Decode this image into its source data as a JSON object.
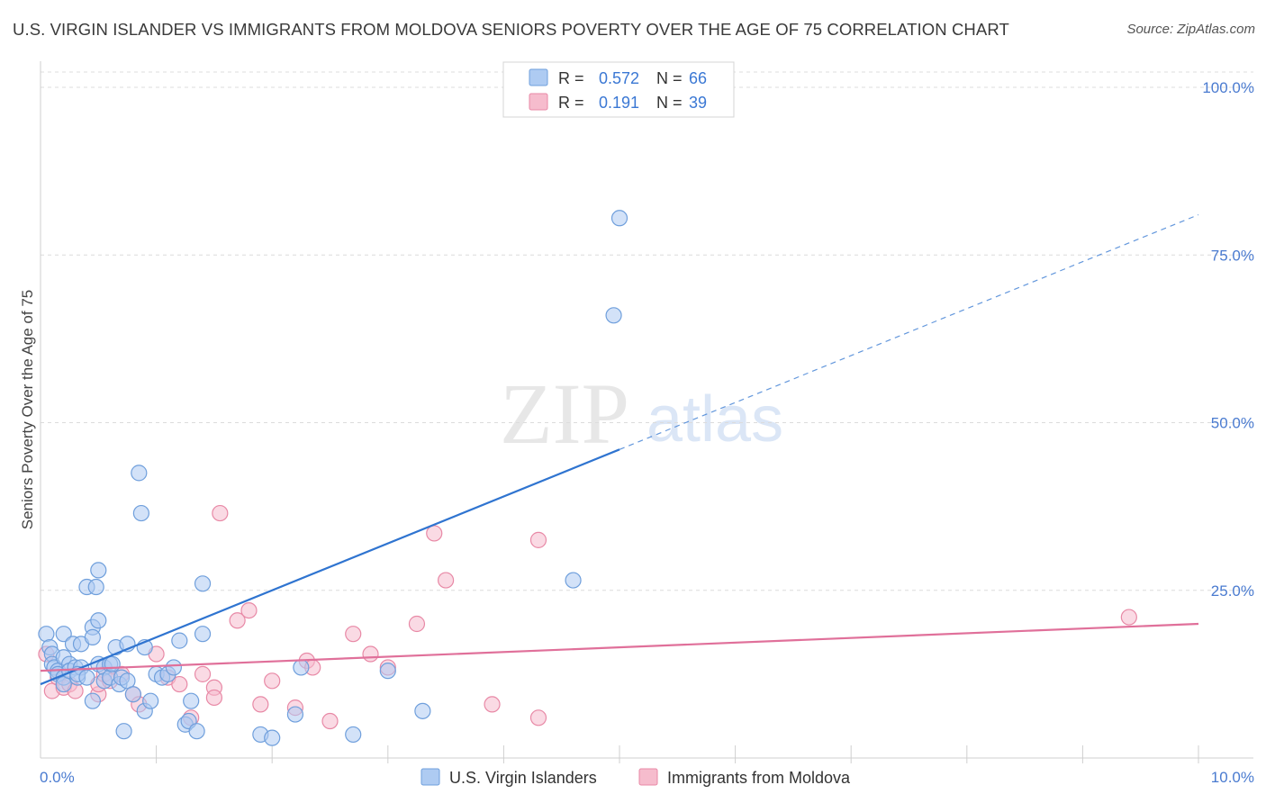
{
  "title": "U.S. VIRGIN ISLANDER VS IMMIGRANTS FROM MOLDOVA SENIORS POVERTY OVER THE AGE OF 75 CORRELATION CHART",
  "source": "Source: ZipAtlas.com",
  "watermark": {
    "zip": "ZIP",
    "atlas": "atlas"
  },
  "colors": {
    "blue_fill": "#aecbf2",
    "blue_stroke": "#6f9fdc",
    "blue_line": "#2f74d0",
    "pink_fill": "#f6bccd",
    "pink_stroke": "#e889a6",
    "pink_line": "#e0709a",
    "tick_blue": "#4a7bd0",
    "grid": "#dcdcdc"
  },
  "chart_data": {
    "type": "scatter",
    "title": "U.S. VIRGIN ISLANDER VS IMMIGRANTS FROM MOLDOVA SENIORS POVERTY OVER THE AGE OF 75 CORRELATION CHART",
    "xlabel": "",
    "ylabel": "Seniors Poverty Over the Age of 75",
    "xlim": [
      0,
      10
    ],
    "ylim": [
      0,
      100
    ],
    "x_tick_labels": [
      "0.0%",
      "10.0%"
    ],
    "y_tick_labels": [
      "25.0%",
      "50.0%",
      "75.0%",
      "100.0%"
    ],
    "y_tick_values": [
      25,
      50,
      75,
      100
    ],
    "legend_top": [
      {
        "r_label": "R =",
        "r": "0.572",
        "n_label": "N =",
        "n": "66",
        "series": "blue"
      },
      {
        "r_label": "R =",
        "r": "0.191",
        "n_label": "N =",
        "n": "39",
        "series": "pink"
      }
    ],
    "legend_bottom": [
      "U.S. Virgin Islanders",
      "Immigrants from Moldova"
    ],
    "series": [
      {
        "name": "U.S. Virgin Islanders",
        "color": "blue",
        "trend": {
          "x0": 0.0,
          "y0": 11.0,
          "x1": 5.0,
          "y1": 46.0,
          "dash_x1": 10.0,
          "dash_y1": 81.0
        },
        "points": [
          [
            0.05,
            18.5
          ],
          [
            0.08,
            16.5
          ],
          [
            0.1,
            15.5
          ],
          [
            0.1,
            14.0
          ],
          [
            0.12,
            13.5
          ],
          [
            0.15,
            13.0
          ],
          [
            0.15,
            12.5
          ],
          [
            0.2,
            18.5
          ],
          [
            0.2,
            15.0
          ],
          [
            0.2,
            12.0
          ],
          [
            0.2,
            11.0
          ],
          [
            0.25,
            14.0
          ],
          [
            0.25,
            13.0
          ],
          [
            0.28,
            17.0
          ],
          [
            0.3,
            13.5
          ],
          [
            0.32,
            12.0
          ],
          [
            0.35,
            17.0
          ],
          [
            0.35,
            13.5
          ],
          [
            0.32,
            12.5
          ],
          [
            0.4,
            25.5
          ],
          [
            0.4,
            12.0
          ],
          [
            0.45,
            19.5
          ],
          [
            0.45,
            18.0
          ],
          [
            0.45,
            8.5
          ],
          [
            0.48,
            25.5
          ],
          [
            0.5,
            20.5
          ],
          [
            0.5,
            14.0
          ],
          [
            0.5,
            28.0
          ],
          [
            0.55,
            13.5
          ],
          [
            0.55,
            11.5
          ],
          [
            0.6,
            14.0
          ],
          [
            0.6,
            12.0
          ],
          [
            0.62,
            14.0
          ],
          [
            0.65,
            16.5
          ],
          [
            0.68,
            11.0
          ],
          [
            0.7,
            12.0
          ],
          [
            0.72,
            4.0
          ],
          [
            0.75,
            11.5
          ],
          [
            0.75,
            17.0
          ],
          [
            0.8,
            9.5
          ],
          [
            0.85,
            42.5
          ],
          [
            0.87,
            36.5
          ],
          [
            0.9,
            16.5
          ],
          [
            0.9,
            7.0
          ],
          [
            0.95,
            8.5
          ],
          [
            1.0,
            12.5
          ],
          [
            1.05,
            12.0
          ],
          [
            1.1,
            12.5
          ],
          [
            1.15,
            13.5
          ],
          [
            1.2,
            17.5
          ],
          [
            1.25,
            5.0
          ],
          [
            1.28,
            5.5
          ],
          [
            1.3,
            8.5
          ],
          [
            1.35,
            4.0
          ],
          [
            1.4,
            18.5
          ],
          [
            1.4,
            26.0
          ],
          [
            1.9,
            3.5
          ],
          [
            2.0,
            3.0
          ],
          [
            2.2,
            6.5
          ],
          [
            2.7,
            3.5
          ],
          [
            2.25,
            13.5
          ],
          [
            3.0,
            13.0
          ],
          [
            3.3,
            7.0
          ],
          [
            4.6,
            26.5
          ],
          [
            4.95,
            66.0
          ],
          [
            5.0,
            80.5
          ]
        ]
      },
      {
        "name": "Immigrants from Moldova",
        "color": "pink",
        "trend": {
          "x0": 0.0,
          "y0": 13.0,
          "x1": 10.0,
          "y1": 20.0
        },
        "points": [
          [
            0.05,
            15.5
          ],
          [
            0.1,
            10.0
          ],
          [
            0.15,
            12.0
          ],
          [
            0.2,
            10.5
          ],
          [
            0.25,
            11.0
          ],
          [
            0.3,
            10.0
          ],
          [
            0.5,
            9.5
          ],
          [
            0.5,
            11.0
          ],
          [
            0.55,
            12.5
          ],
          [
            0.6,
            11.5
          ],
          [
            0.7,
            12.5
          ],
          [
            0.8,
            9.5
          ],
          [
            0.85,
            8.0
          ],
          [
            1.0,
            15.5
          ],
          [
            1.1,
            12.0
          ],
          [
            1.2,
            11.0
          ],
          [
            1.3,
            6.0
          ],
          [
            1.4,
            12.5
          ],
          [
            1.5,
            10.5
          ],
          [
            1.5,
            9.0
          ],
          [
            1.55,
            36.5
          ],
          [
            1.7,
            20.5
          ],
          [
            1.8,
            22.0
          ],
          [
            1.9,
            8.0
          ],
          [
            2.0,
            11.5
          ],
          [
            2.2,
            7.5
          ],
          [
            2.3,
            14.5
          ],
          [
            2.35,
            13.5
          ],
          [
            2.5,
            5.5
          ],
          [
            2.7,
            18.5
          ],
          [
            2.85,
            15.5
          ],
          [
            3.0,
            13.5
          ],
          [
            3.25,
            20.0
          ],
          [
            3.4,
            33.5
          ],
          [
            3.5,
            26.5
          ],
          [
            3.9,
            8.0
          ],
          [
            4.3,
            32.5
          ],
          [
            4.3,
            6.0
          ],
          [
            9.4,
            21.0
          ]
        ]
      }
    ]
  }
}
